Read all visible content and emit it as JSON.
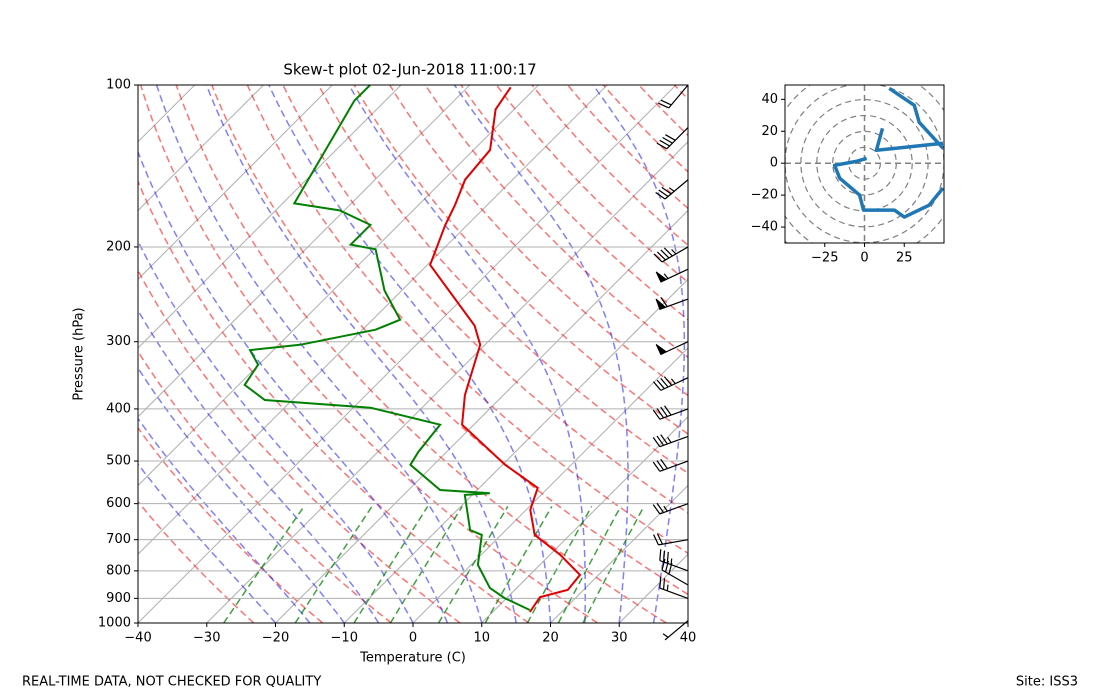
{
  "chart_data": [
    {
      "type": "skewt",
      "title": "Skew-t plot 02-Jun-2018 11:00:17",
      "xlabel": "Temperature (C)",
      "ylabel": "Pressure (hPa)",
      "xlim": [
        -40,
        40
      ],
      "ylim": [
        1000,
        100
      ],
      "yscale": "log",
      "grid": true,
      "xticks": [
        {
          "value": -40,
          "label": "−40"
        },
        {
          "value": -30,
          "label": "−30"
        },
        {
          "value": -20,
          "label": "−20"
        },
        {
          "value": -10,
          "label": "−10"
        },
        0,
        10,
        20,
        30,
        40
      ],
      "yticks": [
        100,
        200,
        300,
        400,
        500,
        600,
        700,
        800,
        900,
        1000
      ],
      "series": [
        {
          "color": "#e00000",
          "pressure": [
            954,
            895,
            868,
            814,
            747,
            686,
            616,
            561,
            508,
            428,
            377,
            304,
            280,
            216,
            182,
            167,
            150,
            132,
            111,
            101
          ],
          "values": [
            15.4,
            14.7,
            17.7,
            17.3,
            11.5,
            4.9,
            0.6,
            -1.5,
            -9.6,
            -21.7,
            -25.6,
            -30.7,
            -34.3,
            -49.6,
            -53.2,
            -54.7,
            -56.9,
            -57.6,
            -62.7,
            -63.7
          ]
        },
        {
          "color": "#008000",
          "pressure": [
            946,
            899,
            861,
            780,
            686,
            672,
            578,
            574,
            566,
            508,
            481,
            428,
            398,
            385,
            361,
            331,
            311,
            304,
            285,
            273,
            241,
            202,
            198,
            182,
            171,
            166,
            138,
            107,
            100
          ],
          "values": [
            15.1,
            9.7,
            6.1,
            1.0,
            -2.8,
            -5.2,
            -11.1,
            -7.7,
            -15.4,
            -23.4,
            -24.1,
            -24.9,
            -37.5,
            -54.0,
            -59.1,
            -60.1,
            -63.4,
            -56.9,
            -48.1,
            -46.0,
            -52.5,
            -59.8,
            -64.1,
            -64.1,
            -70.7,
            -78.3,
            -80.9,
            -84.5,
            -84.5
          ]
        }
      ],
      "wind_barbs": {
        "pressure": [
          990,
          900,
          850,
          800,
          700,
          600,
          500,
          450,
          400,
          350,
          300,
          250,
          220,
          200,
          150,
          120,
          100
        ],
        "speed": [
          5,
          25,
          30,
          35,
          20,
          25,
          30,
          35,
          40,
          45,
          50,
          60,
          55,
          45,
          35,
          40,
          20
        ],
        "direction": [
          230,
          290,
          300,
          290,
          260,
          250,
          250,
          250,
          250,
          245,
          245,
          250,
          245,
          240,
          230,
          225,
          220
        ],
        "color": "#000000"
      }
    },
    {
      "type": "hodograph",
      "xlim": [
        -50,
        50
      ],
      "ylim": [
        -50,
        49
      ],
      "xticks": [
        {
          "value": -25,
          "label": "−25"
        },
        0,
        25
      ],
      "yticks": [
        {
          "value": -40,
          "label": "−40"
        },
        {
          "value": -20,
          "label": "−20"
        },
        0,
        20,
        40
      ],
      "series": [
        {
          "color": "#1f77b4",
          "u": [
            1.3,
            -4.4,
            -18.8,
            -15.6,
            -3.1,
            -0.6,
            18.8,
            25,
            40.6,
            49.4,
            null,
            49.4,
            7.5,
            11.3,
            null,
            15.6,
            31.3,
            34.4,
            49.4
          ],
          "v": [
            3.1,
            1.3,
            -1.3,
            -9.4,
            -20,
            -29.4,
            -29.4,
            -33.8,
            -26.3,
            -15.6,
            null,
            12.5,
            8.1,
            21.9,
            null,
            46.9,
            36.3,
            25.6,
            9.4
          ]
        }
      ]
    }
  ],
  "footer": {
    "left": "REAL-TIME DATA, NOT CHECKED FOR QUALITY",
    "right": "Site: ISS3"
  }
}
